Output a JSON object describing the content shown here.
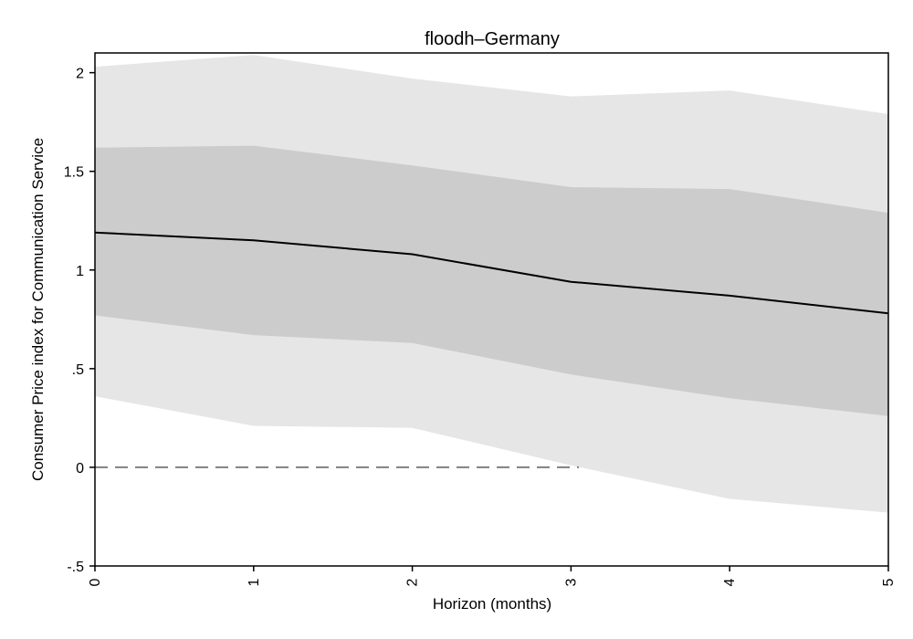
{
  "chart_data": {
    "type": "area",
    "title": "floodh–Germany",
    "xlabel": "Horizon (months)",
    "ylabel": "Consumer Price index for Communication Service",
    "xlim": [
      0,
      5
    ],
    "ylim": [
      -0.5,
      2.1
    ],
    "x_ticks": [
      0,
      1,
      2,
      3,
      4,
      5
    ],
    "x_tick_labels": [
      "0",
      "1",
      "2",
      "3",
      "4",
      "5"
    ],
    "y_ticks": [
      -0.5,
      0,
      0.5,
      1,
      1.5,
      2
    ],
    "y_tick_labels": [
      "-.5",
      "0",
      ".5",
      "1",
      "1.5",
      "2"
    ],
    "x": [
      0,
      1,
      2,
      3,
      4,
      5
    ],
    "estimate": [
      1.19,
      1.15,
      1.08,
      0.94,
      0.87,
      0.78
    ],
    "inner_band": {
      "lower": [
        0.77,
        0.67,
        0.63,
        0.47,
        0.35,
        0.26
      ],
      "upper": [
        1.62,
        1.63,
        1.53,
        1.42,
        1.41,
        1.29
      ]
    },
    "outer_band": {
      "lower": [
        0.36,
        0.21,
        0.2,
        0.01,
        -0.16,
        -0.23
      ],
      "upper": [
        2.03,
        2.09,
        1.97,
        1.88,
        1.91,
        1.79
      ]
    },
    "reference_line": {
      "y": 0,
      "style": "dashed"
    },
    "colors": {
      "outer_band": "#e6e6e6",
      "inner_band": "#cccccc",
      "estimate": "#000000",
      "reference": "#808080"
    },
    "grid": false,
    "legend": "none"
  }
}
